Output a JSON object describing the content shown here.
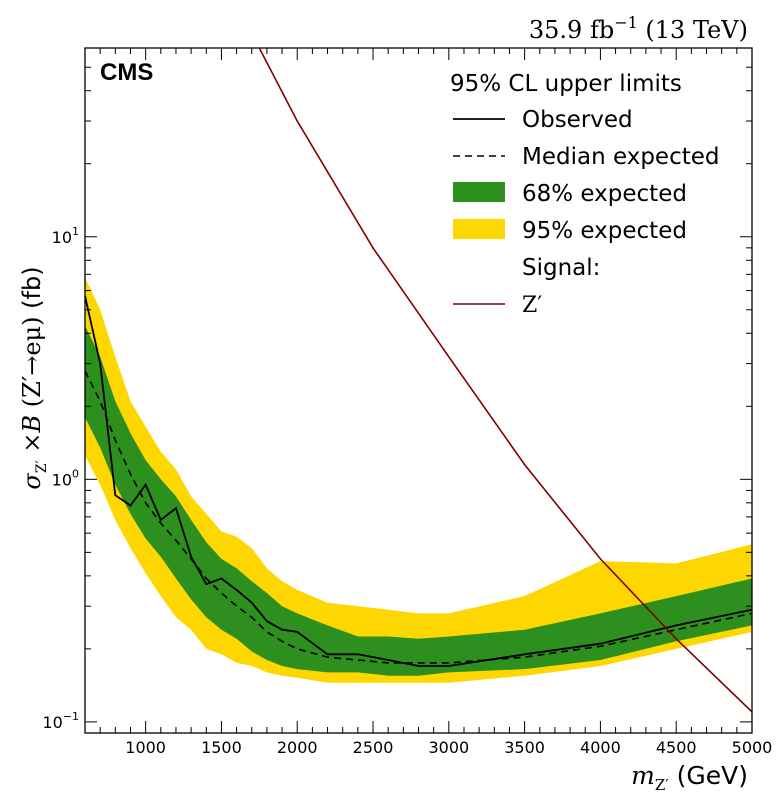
{
  "chart_data": {
    "type": "line",
    "experiment_label": "CMS",
    "lumi_label": "35.9 fb",
    "lumi_exponent": "−1",
    "energy_label": "(13 TeV)",
    "xlabel": {
      "symbol": "m",
      "subscript": "Z′",
      "unit": "(GeV)"
    },
    "ylabel": {
      "symbol": "σ",
      "subscript": "Z′",
      "mid": " ×",
      "B": "B",
      "process": " (Z′→eμ)",
      "unit": " (fb)"
    },
    "x_scale": "linear",
    "y_scale": "log",
    "xlim": [
      600,
      5000
    ],
    "ylim": [
      0.09,
      60
    ],
    "x_ticks": [
      1000,
      1500,
      2000,
      2500,
      3000,
      3500,
      4000,
      4500,
      5000
    ],
    "x_tick_labels": [
      "1000",
      "1500",
      "2000",
      "2500",
      "3000",
      "3500",
      "4000",
      "4500",
      "5000"
    ],
    "y_ticks": [
      0.1,
      1,
      10
    ],
    "y_tick_labels": [
      {
        "base": "10",
        "exp": "−1"
      },
      {
        "base": "10",
        "exp": "0"
      },
      {
        "base": "10",
        "exp": "1"
      }
    ],
    "legend": {
      "title": "95% CL upper limits",
      "entries": [
        "Observed",
        "Median expected",
        "68% expected",
        "95% expected",
        "Signal:",
        "Z′"
      ]
    },
    "colors": {
      "band95": "#FFD700",
      "band68": "#2D8F1E",
      "observed": "#000000",
      "expected": "#000000",
      "signal": "#800000"
    },
    "x": [
      600,
      700,
      800,
      900,
      1000,
      1100,
      1200,
      1300,
      1400,
      1500,
      1600,
      1700,
      1800,
      1900,
      2000,
      2200,
      2400,
      2600,
      2800,
      3000,
      3500,
      4000,
      4500,
      5000
    ],
    "series": [
      {
        "name": "Observed",
        "style": "solid",
        "values": [
          5.7,
          3.0,
          0.86,
          0.78,
          0.95,
          0.68,
          0.76,
          0.48,
          0.37,
          0.39,
          0.35,
          0.31,
          0.26,
          0.24,
          0.235,
          0.19,
          0.19,
          0.18,
          0.17,
          0.17,
          0.19,
          0.21,
          0.25,
          0.29
        ]
      },
      {
        "name": "Median expected",
        "style": "dashed",
        "values": [
          2.8,
          2.1,
          1.45,
          1.05,
          0.8,
          0.66,
          0.56,
          0.47,
          0.39,
          0.34,
          0.3,
          0.27,
          0.235,
          0.215,
          0.2,
          0.185,
          0.18,
          0.175,
          0.175,
          0.175,
          0.185,
          0.205,
          0.24,
          0.28
        ]
      },
      {
        "name": "68% expected",
        "style": "band",
        "low": [
          1.8,
          1.35,
          0.95,
          0.72,
          0.57,
          0.48,
          0.39,
          0.32,
          0.27,
          0.24,
          0.22,
          0.195,
          0.18,
          0.17,
          0.165,
          0.16,
          0.16,
          0.155,
          0.155,
          0.16,
          0.165,
          0.18,
          0.215,
          0.25
        ],
        "high": [
          4.3,
          3.2,
          2.1,
          1.55,
          1.2,
          1.0,
          0.85,
          0.68,
          0.55,
          0.47,
          0.43,
          0.38,
          0.34,
          0.3,
          0.28,
          0.25,
          0.225,
          0.225,
          0.22,
          0.225,
          0.24,
          0.28,
          0.33,
          0.39
        ]
      },
      {
        "name": "95% expected",
        "style": "band",
        "low": [
          1.25,
          0.95,
          0.68,
          0.52,
          0.41,
          0.33,
          0.27,
          0.24,
          0.2,
          0.19,
          0.175,
          0.17,
          0.16,
          0.155,
          0.152,
          0.145,
          0.145,
          0.145,
          0.145,
          0.145,
          0.155,
          0.17,
          0.2,
          0.235
        ],
        "high": [
          6.8,
          5.0,
          3.2,
          2.1,
          1.65,
          1.3,
          1.1,
          0.85,
          0.72,
          0.61,
          0.58,
          0.52,
          0.43,
          0.38,
          0.35,
          0.31,
          0.3,
          0.29,
          0.28,
          0.28,
          0.33,
          0.46,
          0.45,
          0.54
        ]
      },
      {
        "name": "Z′",
        "style": "solid",
        "x": [
          1750,
          2000,
          2500,
          3000,
          3500,
          4000,
          4500,
          5000
        ],
        "values": [
          60,
          30,
          9.0,
          3.2,
          1.15,
          0.47,
          0.22,
          0.11
        ]
      }
    ]
  }
}
